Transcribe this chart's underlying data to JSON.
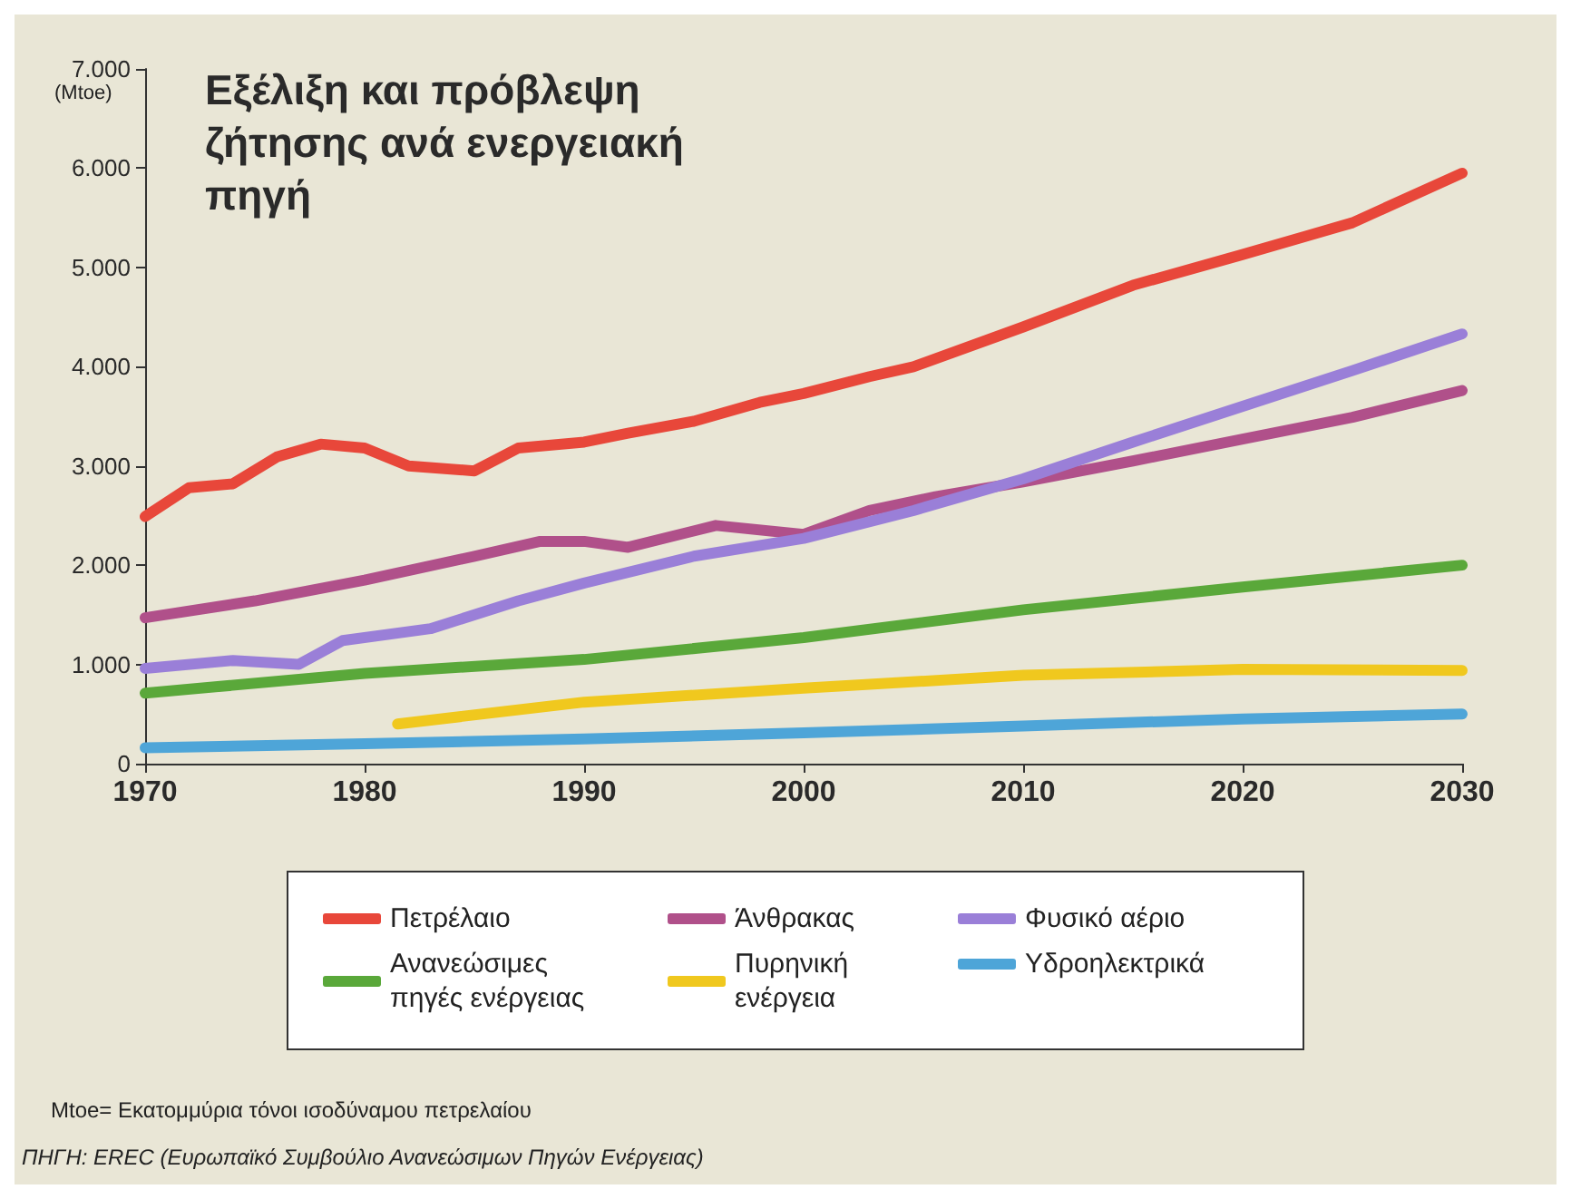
{
  "chart_data": {
    "type": "line",
    "title": "Εξέλιξη και πρόβλεψη ζήτησης ανά ενεργειακή πηγή",
    "ylabel": "(Mtoe)",
    "x": [
      1970,
      1972,
      1974,
      1976,
      1978,
      1980,
      1982,
      1985,
      1987,
      1990,
      1992,
      1995,
      1998,
      2000,
      2003,
      2005,
      2010,
      2015,
      2020,
      2025,
      2030
    ],
    "series": [
      {
        "name": "Πετρέλαιο",
        "color": "#e8473a",
        "values": [
          2490,
          2780,
          2820,
          3090,
          3220,
          3180,
          3000,
          2950,
          3180,
          3240,
          3330,
          3450,
          3640,
          3730,
          3900,
          4000,
          4400,
          4820,
          5130,
          5450,
          5950
        ]
      },
      {
        "name": "Άνθρακας",
        "color": "#b0508a",
        "x": [
          1970,
          1975,
          1980,
          1985,
          1988,
          1990,
          1992,
          1996,
          2000,
          2003,
          2006,
          2010,
          2015,
          2020,
          2025,
          2030
        ],
        "values": [
          1470,
          1640,
          1850,
          2090,
          2240,
          2240,
          2180,
          2400,
          2310,
          2550,
          2690,
          2840,
          3050,
          3270,
          3490,
          3760
        ]
      },
      {
        "name": "Φυσικό αέριο",
        "color": "#9a7fd8",
        "x": [
          1970,
          1974,
          1977,
          1979,
          1983,
          1987,
          1990,
          1995,
          2000,
          2005,
          2010,
          2015,
          2020,
          2025,
          2030
        ],
        "values": [
          960,
          1040,
          1000,
          1240,
          1360,
          1640,
          1820,
          2090,
          2270,
          2550,
          2870,
          3240,
          3600,
          3960,
          4330
        ]
      },
      {
        "name": "Ανανεώσιμες πηγές ενέργειας",
        "color": "#5aa83a",
        "x": [
          1970,
          1980,
          1990,
          2000,
          2010,
          2020,
          2030
        ],
        "values": [
          710,
          910,
          1050,
          1270,
          1550,
          1780,
          2000
        ]
      },
      {
        "name": "Πυρηνική ενέργεια",
        "color": "#f0c81e",
        "x": [
          1981.5,
          1990,
          2000,
          2010,
          2020,
          2030
        ],
        "values": [
          400,
          620,
          760,
          890,
          950,
          940
        ]
      },
      {
        "name": "Υδροηλεκτρικά",
        "color": "#4ea5d8",
        "x": [
          1970,
          1980,
          1990,
          2000,
          2010,
          2020,
          2030
        ],
        "values": [
          160,
          200,
          250,
          310,
          380,
          450,
          500
        ]
      }
    ],
    "xlim": [
      1970,
      2030
    ],
    "xticks": [
      1970,
      1980,
      1990,
      2000,
      2010,
      2020,
      2030
    ],
    "ylim": [
      0,
      7000
    ],
    "yticks": [
      0,
      {
        "value": 1000,
        "label": "1.000"
      },
      {
        "value": 2000,
        "label": "2.000"
      },
      {
        "value": 3000,
        "label": "3.000"
      },
      {
        "value": 4000,
        "label": "4.000"
      },
      {
        "value": 5000,
        "label": "5.000"
      },
      {
        "value": 6000,
        "label": "6.000"
      },
      {
        "value": 7000,
        "label": "7.000"
      }
    ],
    "grid": false,
    "legend": "bottom",
    "marker": "none",
    "line_style": "solid",
    "annotations": [
      "Mtoe= Εκατομμύρια τόνοι ισοδύναμου πετρελαίου",
      "ΠΗΓΗ: EREC (Ευρωπαϊκό Συμβούλιο Ανανεώσιμων Πηγών Ενέργειας)"
    ]
  }
}
